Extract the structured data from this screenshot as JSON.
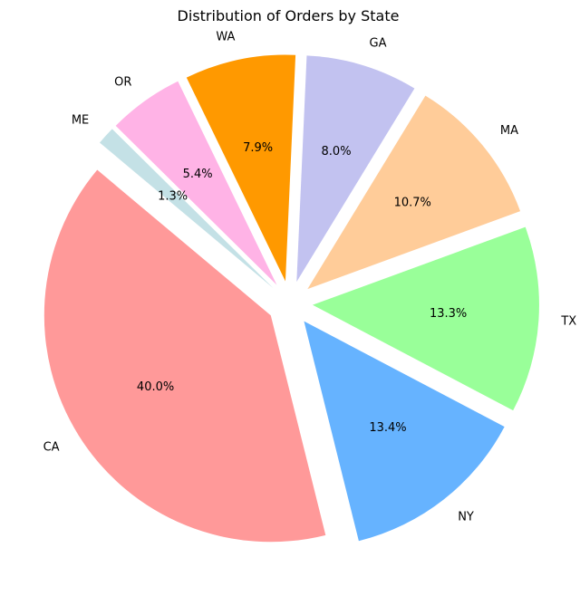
{
  "chart_data": {
    "type": "pie",
    "title": "Distribution of Orders by State",
    "slices": [
      {
        "label": "CA",
        "value": 40.0,
        "pct_label": "40.0%",
        "color": "#ff9999"
      },
      {
        "label": "NY",
        "value": 13.4,
        "pct_label": "13.4%",
        "color": "#66b3ff"
      },
      {
        "label": "TX",
        "value": 13.3,
        "pct_label": "13.3%",
        "color": "#99ff99"
      },
      {
        "label": "MA",
        "value": 10.7,
        "pct_label": "10.7%",
        "color": "#ffcc99"
      },
      {
        "label": "GA",
        "value": 8.0,
        "pct_label": "8.0%",
        "color": "#c2c2f0"
      },
      {
        "label": "WA",
        "value": 7.9,
        "pct_label": "7.9%",
        "color": "#ff9900"
      },
      {
        "label": "OR",
        "value": 5.4,
        "pct_label": "5.4%",
        "color": "#ffb3e6"
      },
      {
        "label": "ME",
        "value": 1.3,
        "pct_label": "1.3%",
        "color": "#c4e1e6"
      }
    ],
    "legend": "none",
    "grid": false
  }
}
